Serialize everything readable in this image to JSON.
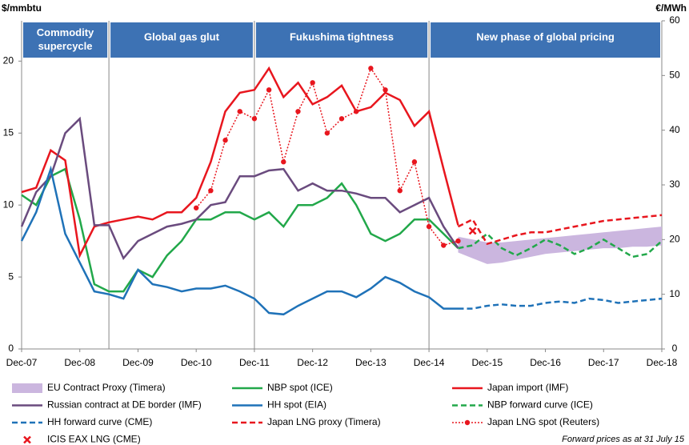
{
  "chart_data": {
    "type": "line",
    "y_label": "$/mmbtu",
    "y2_label": "€/MWh",
    "periods": [
      "Commodity supercycle",
      "Global gas glut",
      "Fukushima tightness",
      "New phase of global pricing"
    ],
    "categories": [
      "Dec-07",
      null,
      null,
      null,
      "Dec-08",
      null,
      null,
      null,
      "Dec-09",
      null,
      null,
      null,
      "Dec-10",
      null,
      null,
      null,
      "Dec-11",
      null,
      null,
      null,
      "Dec-12",
      null,
      null,
      null,
      "Dec-13",
      null,
      null,
      null,
      "Dec-14",
      null,
      null,
      null,
      "Dec-15",
      null,
      null,
      null,
      "Dec-16",
      null,
      null,
      null,
      "Dec-17",
      null,
      null,
      null,
      "Dec-18"
    ],
    "ylim": [
      0,
      22.8
    ],
    "yticks": [
      0,
      5,
      10,
      15,
      20
    ],
    "y2lim": [
      0,
      60
    ],
    "y2ticks": [
      0,
      10,
      20,
      30,
      40,
      50,
      60
    ],
    "series": [
      {
        "name": "EU Contract Proxy (Timera)",
        "color": "#cbb6df",
        "style": "band",
        "low": [
          null,
          null,
          null,
          null,
          null,
          null,
          null,
          null,
          null,
          null,
          null,
          null,
          null,
          null,
          null,
          null,
          null,
          null,
          null,
          null,
          null,
          null,
          null,
          null,
          null,
          null,
          null,
          null,
          null,
          null,
          6.7,
          6.3,
          5.9,
          6.0,
          6.2,
          6.4,
          6.6,
          6.7,
          6.8,
          6.9,
          7.0,
          7.0,
          7.1,
          7.1,
          7.2
        ],
        "high": [
          null,
          null,
          null,
          null,
          null,
          null,
          null,
          null,
          null,
          null,
          null,
          null,
          null,
          null,
          null,
          null,
          null,
          null,
          null,
          null,
          null,
          null,
          null,
          null,
          null,
          null,
          null,
          null,
          null,
          null,
          7.8,
          7.6,
          7.4,
          7.4,
          7.5,
          7.6,
          7.7,
          7.8,
          7.9,
          8.0,
          8.1,
          8.2,
          8.3,
          8.4,
          8.5
        ]
      },
      {
        "name": "NBP spot (ICE)",
        "color": "#22a84a",
        "style": "solid",
        "values": [
          10.7,
          10.0,
          12.0,
          12.5,
          9.0,
          4.5,
          4.0,
          4.0,
          5.5,
          5.0,
          6.5,
          7.5,
          9.0,
          9.0,
          9.5,
          9.5,
          9.0,
          9.5,
          8.5,
          10.0,
          10.0,
          10.5,
          11.5,
          10.0,
          8.0,
          7.5,
          8.0,
          9.0,
          9.0,
          8.0,
          7.0,
          null,
          null,
          null,
          null,
          null,
          null,
          null,
          null,
          null,
          null,
          null,
          null,
          null,
          null
        ]
      },
      {
        "name": "Japan import (IMF)",
        "color": "#e8161e",
        "style": "solid",
        "values": [
          10.9,
          11.2,
          13.8,
          13.1,
          6.5,
          8.5,
          8.8,
          9.0,
          9.2,
          9.0,
          9.5,
          9.5,
          10.5,
          13.0,
          16.5,
          17.8,
          18.0,
          19.5,
          17.5,
          18.5,
          17.0,
          17.5,
          18.3,
          16.5,
          16.8,
          17.8,
          17.3,
          15.5,
          16.5,
          12.5,
          8.6,
          null,
          null,
          null,
          null,
          null,
          null,
          null,
          null,
          null,
          null,
          null,
          null,
          null,
          null
        ]
      },
      {
        "name": "Russian contract at DE border (IMF)",
        "color": "#6a4b7e",
        "style": "solid",
        "values": [
          8.5,
          10.9,
          12.0,
          15.0,
          16.0,
          8.6,
          8.6,
          6.3,
          7.5,
          8.0,
          8.5,
          8.7,
          9.0,
          10.0,
          10.2,
          12.0,
          12.0,
          12.4,
          12.5,
          11.0,
          11.5,
          11.0,
          11.0,
          10.8,
          10.5,
          10.5,
          9.5,
          10.0,
          10.5,
          8.5,
          7.0,
          null,
          null,
          null,
          null,
          null,
          null,
          null,
          null,
          null,
          null,
          null,
          null,
          null,
          null
        ]
      },
      {
        "name": "HH spot (EIA)",
        "color": "#1f72b8",
        "style": "solid",
        "values": [
          7.5,
          9.5,
          12.5,
          8.0,
          6.0,
          4.0,
          3.8,
          3.5,
          5.5,
          4.5,
          4.3,
          4.0,
          4.2,
          4.2,
          4.4,
          4.0,
          3.5,
          2.5,
          2.4,
          3.0,
          3.5,
          4.0,
          4.0,
          3.6,
          4.2,
          5.0,
          4.6,
          4.0,
          3.6,
          2.8,
          2.8,
          null,
          null,
          null,
          null,
          null,
          null,
          null,
          null,
          null,
          null,
          null,
          null,
          null,
          null
        ]
      },
      {
        "name": "NBP forward curve (ICE)",
        "color": "#22a84a",
        "style": "dashed",
        "values": [
          null,
          null,
          null,
          null,
          null,
          null,
          null,
          null,
          null,
          null,
          null,
          null,
          null,
          null,
          null,
          null,
          null,
          null,
          null,
          null,
          null,
          null,
          null,
          null,
          null,
          null,
          null,
          null,
          null,
          null,
          7.0,
          7.2,
          8.0,
          7.0,
          6.5,
          7.0,
          7.6,
          7.2,
          6.6,
          7.0,
          7.6,
          7.0,
          6.4,
          6.6,
          7.5
        ]
      },
      {
        "name": "HH forward curve (CME)",
        "color": "#1f72b8",
        "style": "dashed",
        "values": [
          null,
          null,
          null,
          null,
          null,
          null,
          null,
          null,
          null,
          null,
          null,
          null,
          null,
          null,
          null,
          null,
          null,
          null,
          null,
          null,
          null,
          null,
          null,
          null,
          null,
          null,
          null,
          null,
          null,
          null,
          2.8,
          2.8,
          3.0,
          3.1,
          3.0,
          3.0,
          3.2,
          3.3,
          3.2,
          3.5,
          3.4,
          3.2,
          3.3,
          3.4,
          3.5
        ]
      },
      {
        "name": "Japan LNG proxy (Timera)",
        "color": "#e8161e",
        "style": "dashed",
        "values": [
          null,
          null,
          null,
          null,
          null,
          null,
          null,
          null,
          null,
          null,
          null,
          null,
          null,
          null,
          null,
          null,
          null,
          null,
          null,
          null,
          null,
          null,
          null,
          null,
          null,
          null,
          null,
          null,
          null,
          null,
          8.5,
          9.0,
          7.3,
          7.6,
          7.9,
          8.1,
          8.1,
          8.3,
          8.5,
          8.7,
          8.9,
          9.0,
          9.1,
          9.2,
          9.3
        ]
      },
      {
        "name": "Japan LNG spot (Reuters)",
        "color": "#e8161e",
        "style": "dotted",
        "values": [
          null,
          null,
          null,
          null,
          null,
          null,
          null,
          null,
          null,
          null,
          null,
          null,
          9.8,
          11.0,
          14.5,
          16.5,
          16.0,
          18.0,
          13.0,
          16.5,
          18.5,
          15.0,
          16.0,
          16.5,
          19.5,
          18.0,
          11.0,
          13.0,
          8.5,
          7.2,
          7.5,
          null,
          null,
          null,
          null,
          null,
          null,
          null,
          null,
          null,
          null,
          null,
          null,
          null,
          null
        ]
      },
      {
        "name": "ICIS EAX LNG (CME)",
        "color": "#e8161e",
        "style": "cross",
        "values": [
          null,
          null,
          null,
          null,
          null,
          null,
          null,
          null,
          null,
          null,
          null,
          null,
          null,
          null,
          null,
          null,
          null,
          null,
          null,
          null,
          null,
          null,
          null,
          null,
          null,
          null,
          null,
          null,
          null,
          null,
          null,
          8.2,
          null,
          null,
          null,
          null,
          null,
          null,
          null,
          null,
          null,
          null,
          null,
          null,
          null
        ]
      }
    ],
    "note": "Forward prices as at 31 July 15"
  }
}
